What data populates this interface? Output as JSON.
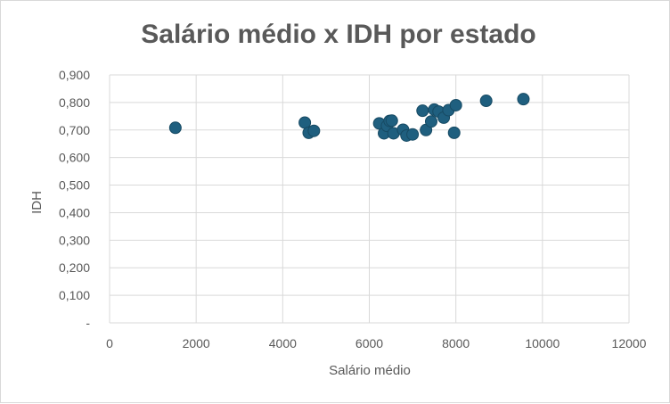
{
  "chart_data": {
    "type": "scatter",
    "title": "Salário médio x IDH por estado",
    "xlabel": "Salário médio",
    "ylabel": "IDH",
    "xlim": [
      0,
      12000
    ],
    "ylim": [
      0,
      0.9
    ],
    "grid": true,
    "legend": "none",
    "colors": {
      "marker": "#1f5f7f",
      "marker_stroke": "#174a63",
      "grid": "#d9d9d9",
      "text": "#595959"
    },
    "x_tick_labels": [
      "0",
      "2000",
      "4000",
      "6000",
      "8000",
      "10000",
      "12000"
    ],
    "y_tick_labels": [
      "-",
      "0,100",
      "0,200",
      "0,300",
      "0,400",
      "0,500",
      "0,600",
      "0,700",
      "0,800",
      "0,900"
    ],
    "series": [
      {
        "points": [
          {
            "x": 1520,
            "y": 0.708
          },
          {
            "x": 4510,
            "y": 0.727
          },
          {
            "x": 4600,
            "y": 0.69
          },
          {
            "x": 4720,
            "y": 0.697
          },
          {
            "x": 6230,
            "y": 0.724
          },
          {
            "x": 6340,
            "y": 0.688
          },
          {
            "x": 6410,
            "y": 0.715
          },
          {
            "x": 6470,
            "y": 0.733
          },
          {
            "x": 6520,
            "y": 0.734
          },
          {
            "x": 6560,
            "y": 0.688
          },
          {
            "x": 6780,
            "y": 0.701
          },
          {
            "x": 6860,
            "y": 0.68
          },
          {
            "x": 7000,
            "y": 0.684
          },
          {
            "x": 7230,
            "y": 0.77
          },
          {
            "x": 7310,
            "y": 0.7
          },
          {
            "x": 7430,
            "y": 0.731
          },
          {
            "x": 7500,
            "y": 0.774
          },
          {
            "x": 7600,
            "y": 0.767
          },
          {
            "x": 7720,
            "y": 0.745
          },
          {
            "x": 7830,
            "y": 0.772
          },
          {
            "x": 7960,
            "y": 0.69
          },
          {
            "x": 8000,
            "y": 0.79
          },
          {
            "x": 8700,
            "y": 0.806
          },
          {
            "x": 9560,
            "y": 0.812
          }
        ]
      }
    ]
  }
}
